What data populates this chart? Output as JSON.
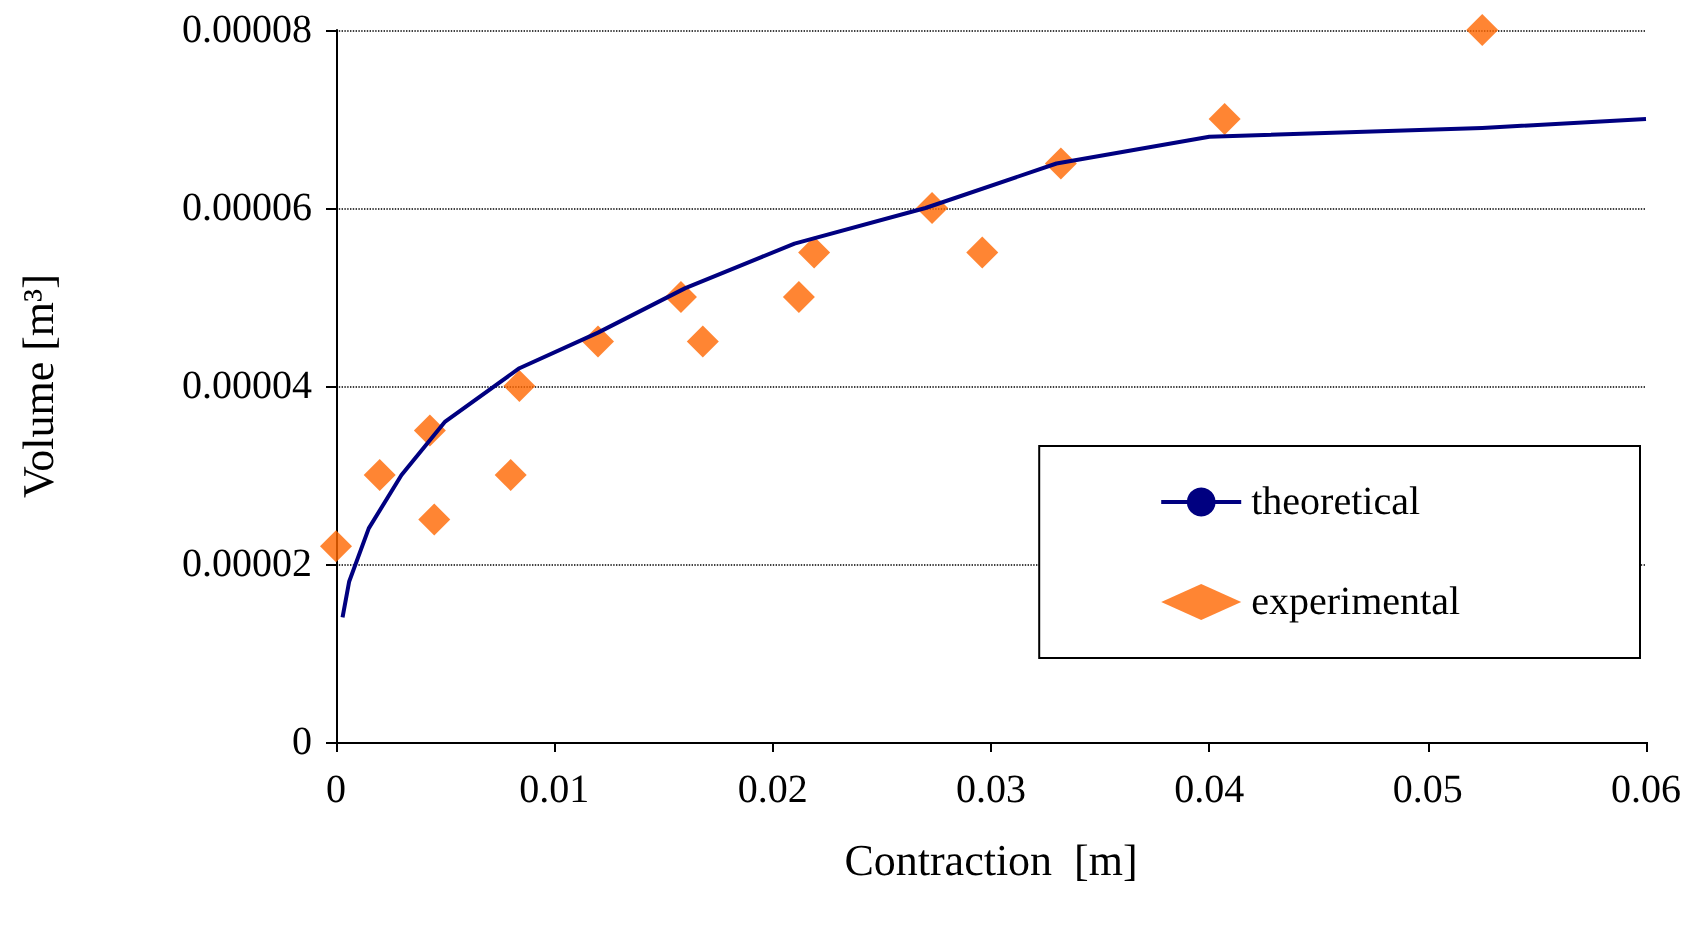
{
  "chart_data": {
    "type": "scatter",
    "xlabel": "Contraction  [m]",
    "ylabel": "Volume [m³]",
    "xlim": [
      0,
      0.06
    ],
    "xticks": [
      0,
      0.01,
      0.02,
      0.03,
      0.04,
      0.05,
      0.06
    ],
    "ylim": [
      0,
      8e-05
    ],
    "yticks": [
      0,
      {
        "value": 2e-05,
        "label": "0.00002"
      },
      {
        "value": 4e-05,
        "label": "0.00004"
      },
      {
        "value": 6e-05,
        "label": "0.00006"
      },
      {
        "value": 8e-05,
        "label": "0.00008"
      }
    ],
    "grid": "y",
    "legend": "bottom right",
    "series": [
      {
        "name": "theoretical",
        "type": "line",
        "color": "#000080",
        "marker": "none",
        "line_style": "solid",
        "x": [
          0.0003,
          0.0006,
          0.0015,
          0.003,
          0.005,
          0.0084,
          0.012,
          0.016,
          0.021,
          0.027,
          0.033,
          0.04,
          0.0525,
          0.06
        ],
        "values": [
          1.4e-05,
          1.8e-05,
          2.4e-05,
          3e-05,
          3.6e-05,
          4.2e-05,
          4.6e-05,
          5.1e-05,
          5.6e-05,
          6e-05,
          6.5e-05,
          6.8e-05,
          6.9e-05,
          7e-05
        ]
      },
      {
        "name": "experimental",
        "color": "#ff6600",
        "marker": "diamond",
        "x": [
          0,
          0.002,
          0.0043,
          0.0045,
          0.008,
          0.0084,
          0.012,
          0.0158,
          0.0168,
          0.0212,
          0.0219,
          0.0273,
          0.0296,
          0.0332,
          0.0407,
          0.0525
        ],
        "values": [
          2.2e-05,
          3e-05,
          3.5e-05,
          2.5e-05,
          3e-05,
          4e-05,
          4.5e-05,
          5e-05,
          4.5e-05,
          5e-05,
          5.5e-05,
          6e-05,
          5.5e-05,
          6.5e-05,
          7e-05,
          8e-05
        ]
      }
    ]
  }
}
